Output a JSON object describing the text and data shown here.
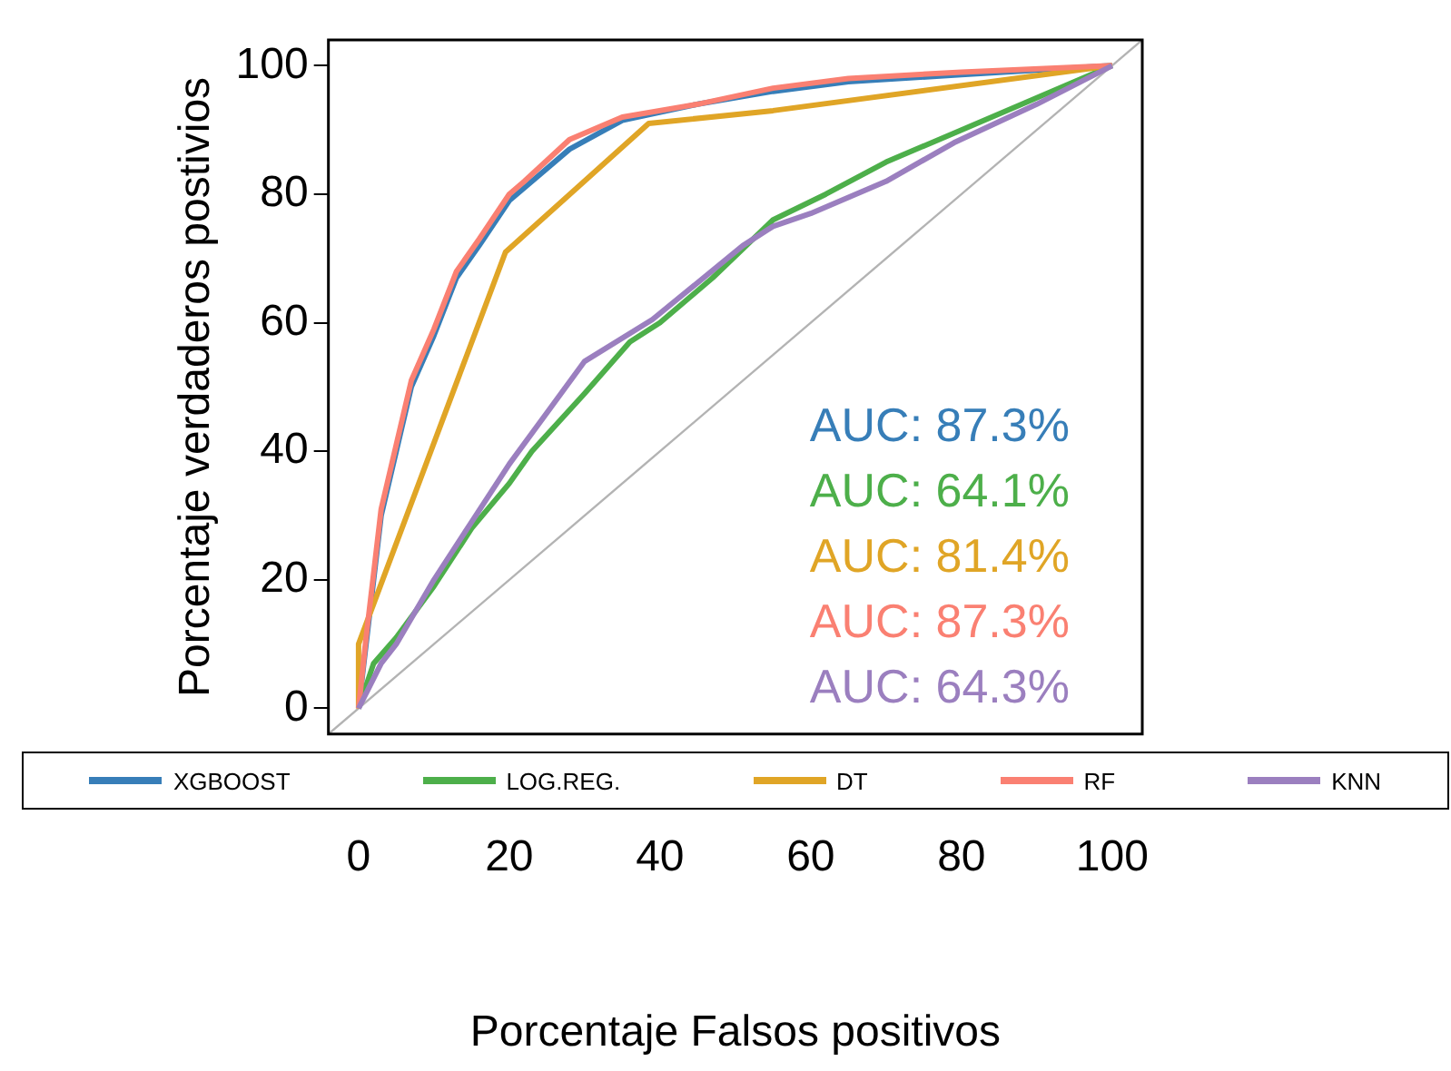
{
  "chart_data": {
    "type": "line",
    "xlabel": "Porcentaje Falsos positivos",
    "ylabel": "Porcentaje verdaderos postivios",
    "xlim": [
      -4,
      104
    ],
    "ylim": [
      -4,
      104
    ],
    "xticks": [
      0,
      20,
      40,
      60,
      80,
      100
    ],
    "yticks": [
      0,
      20,
      40,
      60,
      80,
      100
    ],
    "grid": false,
    "legend": "bottom",
    "marker": "none",
    "line_style": "solid",
    "annotations": [
      "AUC: 87.3%",
      "AUC: 64.1%",
      "AUC: 81.4%",
      "AUC: 87.3%",
      "AUC: 64.3%"
    ],
    "series": [
      {
        "name": "XGBOOST",
        "color": "#377eb8",
        "x": [
          0,
          1,
          2,
          3,
          5,
          7,
          10,
          13,
          16,
          20,
          24,
          28,
          35,
          45,
          55,
          65,
          80,
          100
        ],
        "values": [
          0,
          10,
          20,
          30,
          40,
          50,
          58,
          67,
          72,
          79,
          83,
          87,
          91.5,
          94,
          96,
          97.5,
          98.6,
          100
        ]
      },
      {
        "name": "LOG.REG.",
        "color": "#4daf4a",
        "x": [
          0,
          2,
          5,
          10,
          15,
          20,
          23,
          30,
          36,
          40,
          47,
          55,
          62,
          70,
          80,
          90,
          100
        ],
        "values": [
          0,
          7,
          11,
          19,
          28,
          35,
          40,
          49,
          57,
          60,
          67,
          76,
          80,
          85,
          90,
          95,
          100
        ]
      },
      {
        "name": "DT",
        "color": "#e0a526",
        "x": [
          0,
          0,
          19.5,
          38.5,
          55,
          100
        ],
        "values": [
          0,
          10,
          71,
          91,
          93,
          100
        ]
      },
      {
        "name": "RF",
        "color": "#fa8072",
        "x": [
          0,
          1,
          2,
          3,
          5,
          7,
          10,
          13,
          16,
          20,
          22,
          28,
          35,
          45,
          55,
          65,
          80,
          100
        ],
        "values": [
          0,
          11,
          21,
          31,
          41,
          51,
          59,
          68,
          73,
          80,
          82,
          88.5,
          92,
          94,
          96.5,
          98,
          99,
          100
        ]
      },
      {
        "name": "KNN",
        "color": "#9b7fbf",
        "x": [
          0,
          3,
          5,
          10,
          15,
          20,
          25,
          30,
          39,
          51,
          55,
          60,
          70,
          79,
          90,
          100
        ],
        "values": [
          0,
          7,
          10,
          20,
          29,
          38,
          46,
          54,
          60.5,
          72,
          75,
          77,
          82,
          88,
          94,
          100
        ]
      },
      {
        "color": "#b3b3b3",
        "x": [
          -4,
          104
        ],
        "values": [
          -4,
          104
        ]
      }
    ]
  }
}
